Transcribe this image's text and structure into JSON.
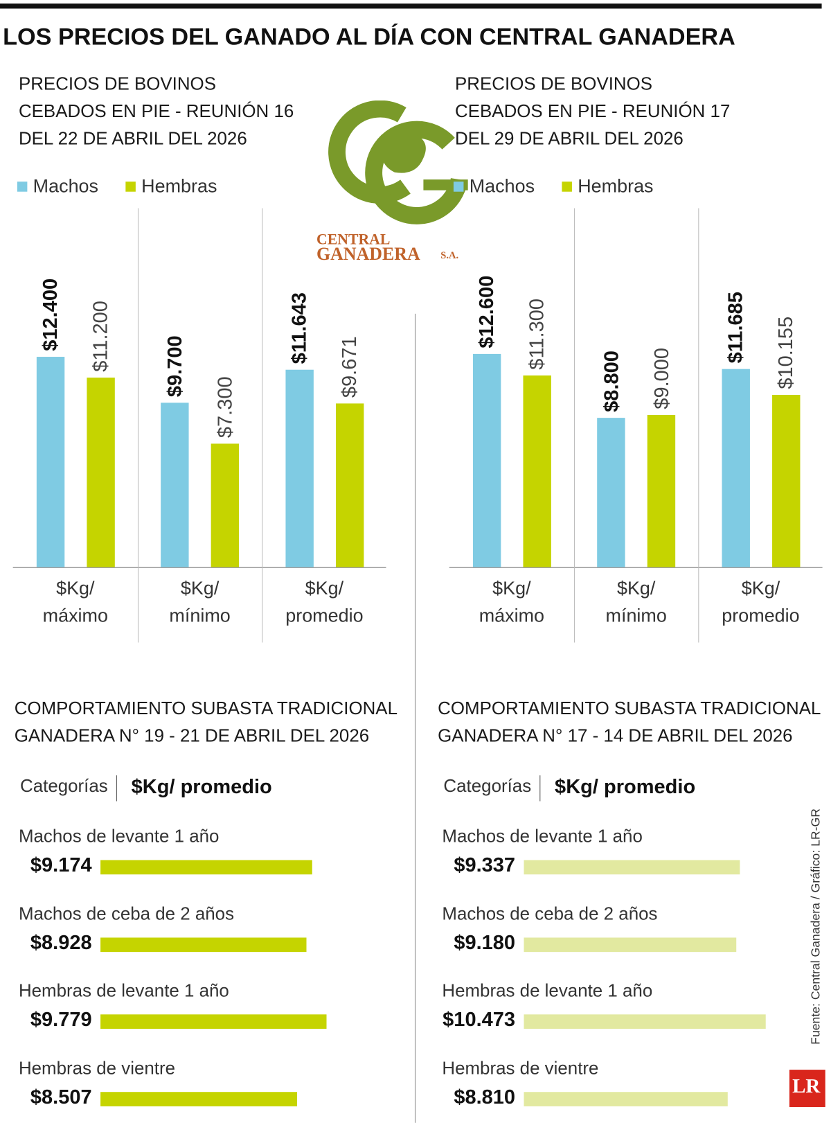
{
  "title": "LOS PRECIOS DEL GANADO AL DÍA CON CENTRAL GANADERA",
  "logo": {
    "line1": "CENTRAL",
    "line2": "GANADERA",
    "suffix": "S.A."
  },
  "source": "Fuente: Central Ganadera / Gráfico: LR-GR",
  "brand": "LR",
  "chart_data": [
    {
      "type": "bar",
      "orientation": "vertical",
      "title": "PRECIOS DE BOVINOS CEBADOS EN PIE - REUNIÓN 16 DEL 22 DE ABRIL DEL 2026",
      "categories": [
        "$Kg/ máximo",
        "$Kg/ mínimo",
        "$Kg/ promedio"
      ],
      "series": [
        {
          "name": "Machos",
          "color": "#7fcbe3",
          "values": [
            12400,
            9700,
            11643
          ],
          "value_labels": [
            "$12.400",
            "$9.700",
            "$11.643"
          ]
        },
        {
          "name": "Hembras",
          "color": "#c5d400",
          "values": [
            11200,
            7300,
            9671
          ],
          "value_labels": [
            "$11.200",
            "$7.300",
            "$9.671"
          ]
        }
      ]
    },
    {
      "type": "bar",
      "orientation": "vertical",
      "title": "PRECIOS DE BOVINOS CEBADOS EN PIE - REUNIÓN 17 DEL 29 DE ABRIL DEL 2026",
      "categories": [
        "$Kg/ máximo",
        "$Kg/ mínimo",
        "$Kg/ promedio"
      ],
      "series": [
        {
          "name": "Machos",
          "color": "#7fcbe3",
          "values": [
            12600,
            8800,
            11685
          ],
          "value_labels": [
            "$12.600",
            "$8.800",
            "$11.685"
          ]
        },
        {
          "name": "Hembras",
          "color": "#c5d400",
          "values": [
            11300,
            9000,
            10155
          ],
          "value_labels": [
            "$11.300",
            "$9.000",
            "$10.155"
          ]
        }
      ]
    },
    {
      "type": "bar",
      "orientation": "horizontal",
      "title": "COMPORTAMIENTO SUBASTA TRADICIONAL GANADERA N° 19 - 21 DE ABRIL DEL 2026",
      "columns": [
        "Categorías",
        "$Kg/ promedio"
      ],
      "categories": [
        "Machos de levante 1 año",
        "Machos de ceba de 2 años",
        "Hembras de levante 1 año",
        "Hembras de vientre"
      ],
      "values": [
        9174,
        8928,
        9779,
        8507
      ],
      "value_labels": [
        "$9.174",
        "$8.928",
        "$9.779",
        "$8.507"
      ],
      "color": "#c5d400"
    },
    {
      "type": "bar",
      "orientation": "horizontal",
      "title": "COMPORTAMIENTO SUBASTA TRADICIONAL GANADERA N° 17 - 14 DE ABRIL DEL 2026",
      "columns": [
        "Categorías",
        "$Kg/ promedio"
      ],
      "categories": [
        "Machos de levante 1 año",
        "Machos de ceba de 2 años",
        "Hembras de levante 1 año",
        "Hembras de vientre"
      ],
      "values": [
        9337,
        9180,
        10473,
        8810
      ],
      "value_labels": [
        "$9.337",
        "$9.180",
        "$10.473",
        "$8.810"
      ],
      "color": "#e2e9a0"
    }
  ]
}
